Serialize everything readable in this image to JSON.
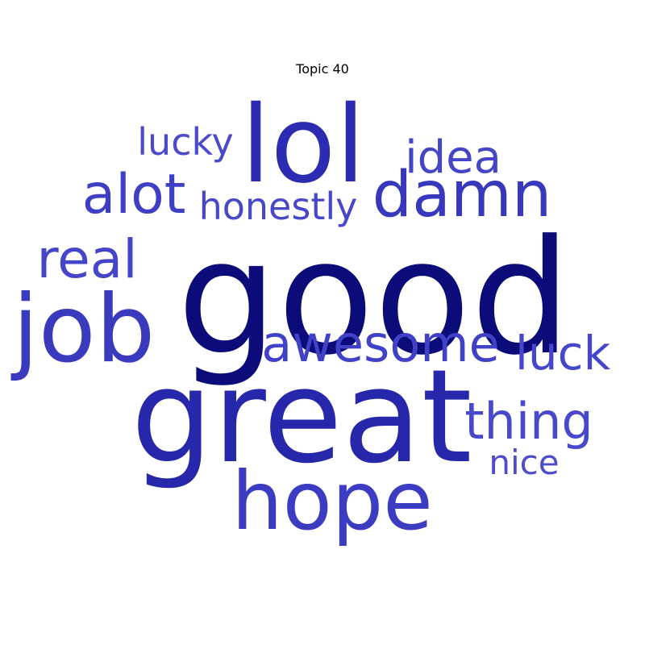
{
  "title": "Topic 40",
  "chart_data": {
    "type": "wordcloud",
    "title": "Topic 40",
    "color_scheme": "blue shades",
    "words": [
      {
        "text": "good",
        "color": "#0b0b7a"
      },
      {
        "text": "great",
        "color": "#2727ab"
      },
      {
        "text": "lol",
        "color": "#2b2bb4"
      },
      {
        "text": "job",
        "color": "#3a3abf"
      },
      {
        "text": "hope",
        "color": "#3c3cc2"
      },
      {
        "text": "damn",
        "color": "#3838bc"
      },
      {
        "text": "awesome",
        "color": "#4141c8"
      },
      {
        "text": "alot",
        "color": "#3f3fc3"
      },
      {
        "text": "real",
        "color": "#4545c9"
      },
      {
        "text": "thing",
        "color": "#4848cb"
      },
      {
        "text": "luck",
        "color": "#4646ca"
      },
      {
        "text": "idea",
        "color": "#4545c8"
      },
      {
        "text": "honestly",
        "color": "#4747ca"
      },
      {
        "text": "lucky",
        "color": "#4a4acc"
      },
      {
        "text": "nice",
        "color": "#4c4ccd"
      }
    ]
  }
}
